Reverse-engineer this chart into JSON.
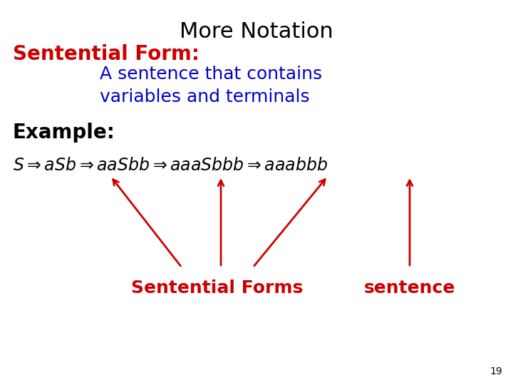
{
  "title": "More Notation",
  "title_color": "#000000",
  "title_fontsize": 22,
  "bg_color": "#ffffff",
  "sentential_form_label": "Sentential Form:",
  "sentential_form_color": "#cc0000",
  "sentential_form_fontsize": 20,
  "definition_line1": "A sentence that contains",
  "definition_line2": "variables and terminals",
  "definition_color": "#0000cc",
  "definition_fontsize": 18,
  "example_label": "Example:",
  "example_color": "#000000",
  "example_fontsize": 20,
  "math_expr": "$S \\Rightarrow aSb \\Rightarrow aaSbb \\Rightarrow aaaSbbb \\Rightarrow aaabbb$",
  "math_color": "#000000",
  "math_fontsize": 17,
  "label_sentential_forms": "Sentential Forms",
  "label_sentence": "sentence",
  "label_color": "#cc0000",
  "label_fontsize": 18,
  "arrow_color": "#cc0000",
  "page_number": "19",
  "page_number_color": "#000000",
  "page_number_fontsize": 10
}
